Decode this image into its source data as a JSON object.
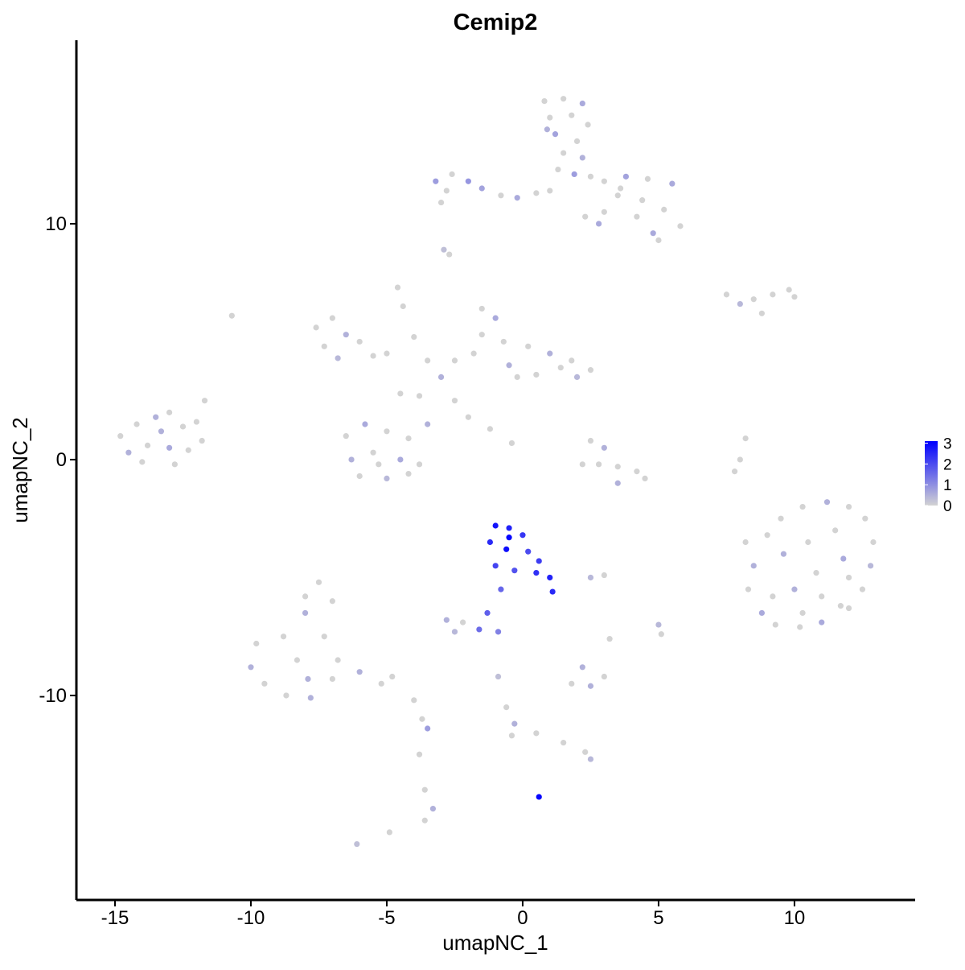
{
  "chart_data": {
    "type": "scatter",
    "title": "Cemip2",
    "x_label": "umapNC_1",
    "y_label": "umapNC_2",
    "xlim": [
      -16.42,
      14.44
    ],
    "ylim": [
      -18.67,
      17.78
    ],
    "xticks": [
      -15,
      -10,
      -5,
      0,
      5,
      10
    ],
    "yticks": [
      -10,
      0,
      10
    ],
    "color_scale": {
      "low": "#d3d3d3",
      "high": "#0000ff",
      "limits": [
        0,
        3.1
      ],
      "ticks": [
        0,
        1,
        2,
        3
      ]
    },
    "x": [
      0.8,
      1.5,
      2.2,
      1.0,
      1.8,
      2.4,
      1.2,
      2.0,
      1.5,
      2.2,
      1.3,
      2.5,
      0.9,
      1.9,
      -3.2,
      -2.6,
      -2.0,
      -2.8,
      -1.5,
      -0.8,
      -0.2,
      0.5,
      1.0,
      -3.0,
      3.0,
      3.8,
      4.6,
      5.5,
      3.5,
      4.4,
      5.2,
      5.8,
      4.8,
      4.2,
      3.0,
      2.8,
      5.0,
      3.6,
      2.3,
      -2.9,
      -2.7,
      7.5,
      8.5,
      9.2,
      9.8,
      10.0,
      8.0,
      8.8,
      -7.6,
      -7.0,
      -6.5,
      -7.3,
      -6.0,
      -5.5,
      -6.8,
      -5.0,
      -4.6,
      -4.4,
      -4.0,
      -1.5,
      -1.0,
      -1.5,
      -0.7,
      0.2,
      1.0,
      1.8,
      2.5,
      2.0,
      0.5,
      -0.5,
      -1.8,
      -2.5,
      1.4,
      -0.2,
      -3.5,
      -3.0,
      -3.8,
      -2.5,
      -4.5,
      -2.0,
      -1.2,
      -0.4,
      -3.5,
      -6.5,
      -5.8,
      -5.0,
      -4.2,
      -6.3,
      -5.5,
      -4.5,
      -3.8,
      -6.0,
      -5.0,
      -4.2,
      -5.3,
      2.5,
      3.0,
      2.8,
      3.5,
      4.2,
      4.5,
      3.5,
      2.2,
      8.2,
      8.0,
      7.8,
      -14.8,
      -14.2,
      -13.5,
      -13.0,
      -12.5,
      -12.0,
      -11.7,
      -14.5,
      -13.8,
      -13.0,
      -12.3,
      -11.8,
      -14.0,
      -12.8,
      -13.3,
      -10.7,
      8.2,
      8.5,
      8.3,
      8.8,
      9.3,
      10.2,
      11.0,
      12.0,
      12.5,
      12.8,
      12.9,
      12.6,
      12.0,
      11.2,
      10.3,
      9.5,
      9.0,
      9.6,
      10.5,
      11.5,
      11.8,
      10.8,
      10.0,
      11.0,
      12.0,
      9.2,
      10.3,
      11.7,
      -10.0,
      -9.5,
      -8.7,
      -7.8,
      -8.8,
      -9.8,
      -8.0,
      -7.5,
      -7.0,
      -7.3,
      -8.3,
      -6.8,
      -6.0,
      -5.2,
      -4.0,
      -4.8,
      -7.0,
      -8.0,
      -7.9,
      -3.7,
      -3.8,
      -3.6,
      -3.3,
      -3.6,
      -6.1,
      -4.9,
      -3.5,
      -2.8,
      -2.2,
      -2.5,
      2.5,
      3.0,
      5.0,
      5.1,
      3.2,
      2.2,
      1.8,
      2.5,
      3.0,
      -0.9,
      -0.6,
      -0.3,
      -0.4,
      0.5,
      1.5,
      2.3,
      2.5,
      -0.9,
      -1.0,
      -0.5,
      0.0,
      -1.2,
      -0.6,
      0.2,
      0.6,
      -1.0,
      -0.3,
      0.5,
      1.0,
      1.1,
      -0.8,
      -1.3,
      -1.6,
      -0.5,
      0.6
    ],
    "y": [
      15.2,
      15.3,
      15.1,
      14.5,
      14.6,
      14.2,
      13.8,
      13.5,
      13.0,
      12.8,
      12.3,
      12.0,
      14.0,
      12.1,
      11.8,
      12.1,
      11.8,
      11.4,
      11.5,
      11.2,
      11.1,
      11.3,
      11.4,
      10.9,
      11.8,
      12.0,
      11.9,
      11.7,
      11.2,
      11.0,
      10.6,
      9.9,
      9.6,
      10.3,
      10.5,
      10.0,
      9.3,
      11.5,
      10.3,
      8.9,
      8.7,
      7.0,
      6.8,
      7.0,
      7.2,
      6.9,
      6.6,
      6.2,
      5.6,
      6.0,
      5.3,
      4.8,
      5.0,
      4.4,
      4.3,
      4.5,
      7.3,
      6.5,
      5.2,
      6.4,
      6.0,
      5.3,
      5.0,
      4.8,
      4.5,
      4.2,
      3.8,
      3.5,
      3.6,
      4.0,
      4.5,
      4.2,
      3.9,
      3.5,
      4.2,
      3.5,
      2.7,
      2.5,
      2.8,
      1.8,
      1.3,
      0.7,
      1.5,
      1.0,
      1.5,
      1.2,
      0.9,
      0.0,
      0.3,
      0.0,
      -0.2,
      -0.7,
      -0.8,
      -0.6,
      -0.2,
      0.8,
      0.5,
      -0.2,
      -0.3,
      -0.5,
      -0.8,
      -1.0,
      -0.2,
      0.9,
      0.0,
      -0.5,
      1.0,
      1.5,
      1.8,
      2.0,
      1.4,
      1.6,
      2.5,
      0.3,
      0.6,
      0.5,
      0.4,
      0.8,
      -0.1,
      -0.2,
      1.2,
      6.1,
      -3.5,
      -4.5,
      -5.5,
      -6.5,
      -7.0,
      -7.1,
      -6.9,
      -6.3,
      -5.5,
      -4.5,
      -3.5,
      -2.5,
      -2.0,
      -1.8,
      -2.0,
      -2.5,
      -3.2,
      -4.0,
      -3.5,
      -3.0,
      -4.2,
      -4.8,
      -5.5,
      -5.8,
      -5.0,
      -5.8,
      -6.5,
      -6.2,
      -8.8,
      -9.5,
      -10.0,
      -10.1,
      -7.5,
      -7.8,
      -6.5,
      -5.2,
      -6.0,
      -7.5,
      -8.5,
      -8.5,
      -9.0,
      -9.5,
      -10.2,
      -9.2,
      -9.3,
      -5.8,
      -9.3,
      -11.0,
      -12.5,
      -14.0,
      -14.8,
      -15.3,
      -16.3,
      -15.8,
      -11.4,
      -6.8,
      -6.9,
      -7.3,
      -5.0,
      -4.9,
      -7.0,
      -7.4,
      -7.6,
      -8.8,
      -9.5,
      -9.6,
      -9.2,
      -9.2,
      -10.5,
      -11.2,
      -11.7,
      -11.6,
      -12.0,
      -12.4,
      -12.7,
      -7.3,
      -2.8,
      -2.9,
      -3.2,
      -3.5,
      -3.8,
      -3.9,
      -4.3,
      -4.5,
      -4.7,
      -4.8,
      -5.0,
      -5.6,
      -5.5,
      -6.5,
      -7.2,
      -3.3,
      -14.3
    ],
    "values": [
      0,
      0,
      0.6,
      0,
      0,
      0,
      0.7,
      0,
      0,
      0.5,
      0,
      0,
      0.5,
      0.8,
      0.8,
      0,
      0.9,
      0,
      0.7,
      0,
      0.6,
      0,
      0,
      0,
      0,
      0.7,
      0,
      0.6,
      0,
      0,
      0,
      0,
      0.6,
      0,
      0,
      0.6,
      0,
      0,
      0,
      0.3,
      0,
      0,
      0,
      0,
      0,
      0,
      0.4,
      0,
      0,
      0,
      0.5,
      0,
      0,
      0,
      0.4,
      0,
      0,
      0,
      0,
      0,
      0.6,
      0,
      0,
      0,
      0.5,
      0,
      0,
      0.4,
      0,
      0.5,
      0,
      0,
      0,
      0,
      0,
      0.5,
      0,
      0,
      0,
      0,
      0,
      0,
      0.5,
      0,
      0.6,
      0,
      0,
      0.5,
      0,
      0.6,
      0,
      0,
      0.4,
      0,
      0,
      0,
      0.5,
      0,
      0,
      0,
      0,
      0.5,
      0,
      0,
      0,
      0,
      0,
      0,
      0.5,
      0,
      0,
      0,
      0,
      0.5,
      0,
      0.6,
      0,
      0,
      0,
      0,
      0.5,
      0,
      0,
      0.5,
      0,
      0.6,
      0,
      0,
      0.6,
      0,
      0,
      0.4,
      0,
      0,
      0,
      0.5,
      0,
      0,
      0,
      0.5,
      0,
      0,
      0.6,
      0,
      0.5,
      0,
      0,
      0,
      0,
      0,
      0.5,
      0,
      0,
      0.5,
      0,
      0,
      0.5,
      0,
      0,
      0,
      0,
      0,
      0.5,
      0,
      0,
      0,
      0,
      0,
      0.5,
      0,
      0,
      0,
      0.5,
      0,
      0.3,
      0,
      0.8,
      0.5,
      0,
      0.4,
      0.4,
      0,
      0.4,
      0,
      0,
      0.5,
      0,
      0.5,
      0,
      0.3,
      0,
      0.5,
      0,
      0,
      0,
      0,
      0.4,
      1.2,
      2.8,
      2.6,
      2.3,
      2.5,
      2.9,
      2.0,
      2.2,
      2.1,
      1.9,
      2.4,
      2.6,
      2.5,
      1.6,
      1.7,
      1.5,
      3.0,
      3.0
    ]
  }
}
